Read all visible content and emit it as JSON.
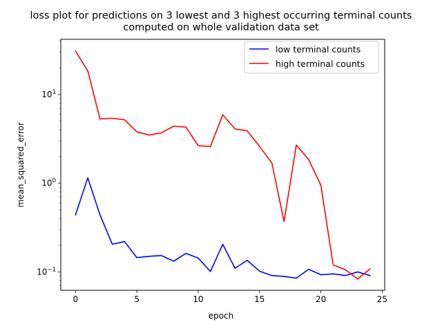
{
  "chart_data": {
    "type": "line",
    "title_line1": "loss plot for predictions on 3 lowest and 3 highest occurring terminal counts",
    "title_line2": "computed on whole validation data set",
    "xlabel": "epoch",
    "ylabel": "mean_squared_error",
    "yscale": "log",
    "xlim": [
      -1.2,
      25.2
    ],
    "ylim": [
      0.062,
      42
    ],
    "xticks": [
      0,
      5,
      10,
      15,
      20,
      25
    ],
    "yticks": [
      {
        "value": 0.1,
        "label_base": "10",
        "label_exp": "−1"
      },
      {
        "value": 1,
        "label_base": "10",
        "label_exp": "0"
      },
      {
        "value": 10,
        "label_base": "10",
        "label_exp": "1"
      }
    ],
    "grid": false,
    "legend_position": "upper right",
    "series": [
      {
        "name": "low terminal counts",
        "color": "#0000ff",
        "x": [
          0,
          1,
          2,
          3,
          4,
          5,
          6,
          7,
          8,
          9,
          10,
          11,
          12,
          13,
          14,
          15,
          16,
          17,
          18,
          19,
          20,
          21,
          22,
          23,
          24
        ],
        "y": [
          0.44,
          1.15,
          0.44,
          0.205,
          0.22,
          0.145,
          0.15,
          0.153,
          0.132,
          0.162,
          0.143,
          0.101,
          0.205,
          0.11,
          0.135,
          0.102,
          0.091,
          0.089,
          0.085,
          0.107,
          0.093,
          0.095,
          0.091,
          0.1,
          0.091
        ]
      },
      {
        "name": "high terminal counts",
        "color": "#ff0000",
        "x": [
          0,
          1,
          2,
          3,
          4,
          5,
          6,
          7,
          8,
          9,
          10,
          11,
          12,
          13,
          14,
          15,
          16,
          17,
          18,
          19,
          20,
          21,
          22,
          23,
          24
        ],
        "y": [
          31,
          18.5,
          5.3,
          5.4,
          5.2,
          3.8,
          3.5,
          3.7,
          4.4,
          4.3,
          2.65,
          2.6,
          5.9,
          4.1,
          3.9,
          2.6,
          1.7,
          0.37,
          2.7,
          1.85,
          0.95,
          0.12,
          0.106,
          0.083,
          0.108
        ]
      }
    ]
  }
}
